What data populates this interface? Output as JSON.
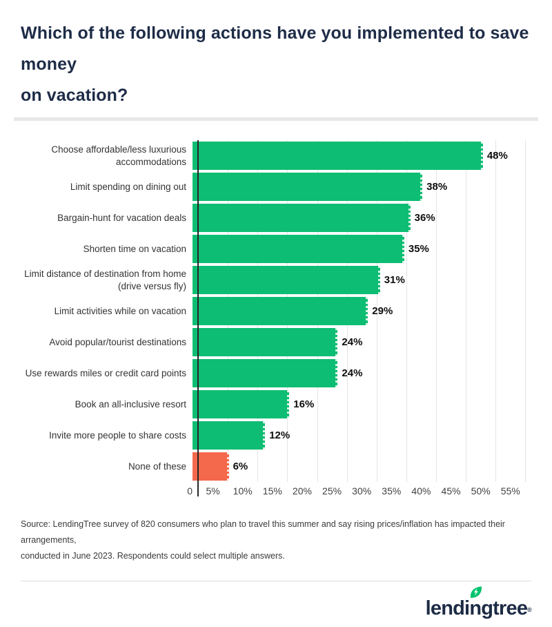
{
  "header": {
    "title_lines": [
      "Which of the following actions have you implemented to save money",
      "on vacation?"
    ]
  },
  "chart_data": {
    "type": "bar",
    "orientation": "horizontal",
    "title": "Which of the following actions have you implemented to save money on vacation?",
    "categories": [
      "Choose affordable/less luxurious accommodations",
      "Limit spending on dining out",
      "Bargain-hunt for vacation deals",
      "Shorten time on vacation",
      "Limit distance of destination from home (drive versus fly)",
      "Limit activities while on vacation",
      "Avoid popular/tourist destinations",
      "Use rewards miles or credit card points",
      "Book an all-inclusive resort",
      "Invite more people to share costs",
      "None of these"
    ],
    "values": [
      48,
      38,
      36,
      35,
      31,
      29,
      24,
      24,
      16,
      12,
      6
    ],
    "value_labels": [
      "48%",
      "38%",
      "36%",
      "35%",
      "31%",
      "29%",
      "24%",
      "24%",
      "16%",
      "12%",
      "6%"
    ],
    "bar_colors": [
      "#0dbd73",
      "#0dbd73",
      "#0dbd73",
      "#0dbd73",
      "#0dbd73",
      "#0dbd73",
      "#0dbd73",
      "#0dbd73",
      "#0dbd73",
      "#0dbd73",
      "#f4684b"
    ],
    "xlim": [
      0,
      56
    ],
    "x_ticks": [
      5,
      10,
      15,
      20,
      25,
      30,
      35,
      40,
      45,
      50,
      55
    ],
    "x_tick_labels": [
      "5%",
      "10%",
      "15%",
      "20%",
      "25%",
      "30%",
      "35%",
      "40%",
      "45%",
      "50%",
      "55%"
    ],
    "zero_label": "0",
    "grid": "vertical gridlines every 5%",
    "legend": "none",
    "colors": {
      "bar_green": "#0dbd73",
      "bar_orange": "#f4684b",
      "grid_gray": "#e4e4e4",
      "axis_dark": "#262626"
    }
  },
  "source": {
    "lines": [
      "Source: LendingTree survey of 820 consumers who plan to travel this summer and say rising prices/inflation has impacted their arrangements,",
      "conducted in June 2023. Respondents could select multiple answers."
    ]
  },
  "footer": {
    "logo_pre": "lendi",
    "logo_n": "n",
    "logo_post": "gtree",
    "logo_reg": "®",
    "brand_navy": "#1d2b45",
    "leaf_green": "#00c26d"
  }
}
